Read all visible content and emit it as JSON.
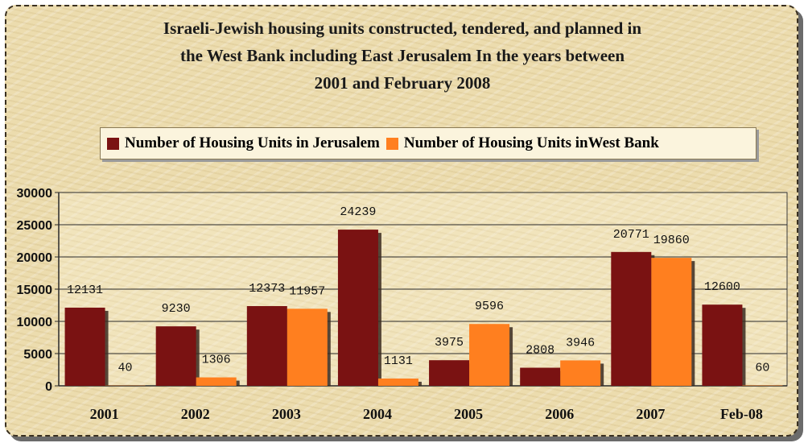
{
  "chart_data": {
    "type": "bar",
    "title": "Israeli-Jewish housing units constructed, tendered, and planned in the West Bank including East Jerusalem In the years between 2001 and February 2008",
    "title_lines": [
      "Israeli-Jewish housing units constructed, tendered, and planned in",
      "the West Bank including East Jerusalem In the years between",
      "2001 and February 2008"
    ],
    "categories": [
      "2001",
      "2002",
      "2003",
      "2004",
      "2005",
      "2006",
      "2007",
      "Feb-08"
    ],
    "series": [
      {
        "name": "Number of Housing Units in Jerusalem",
        "color": "#7a1212",
        "values": [
          12131,
          9230,
          12373,
          24239,
          3975,
          2808,
          20771,
          12600
        ]
      },
      {
        "name": "Number of Housing Units inWest Bank",
        "color": "#ff7f1f",
        "values": [
          40,
          1306,
          11957,
          1131,
          9596,
          3946,
          19860,
          60
        ]
      }
    ],
    "xlabel": "",
    "ylabel": "",
    "ylim": [
      0,
      30000
    ],
    "yticks": [
      0,
      5000,
      10000,
      15000,
      20000,
      25000,
      30000
    ],
    "grid": true,
    "legend_position": "top"
  }
}
